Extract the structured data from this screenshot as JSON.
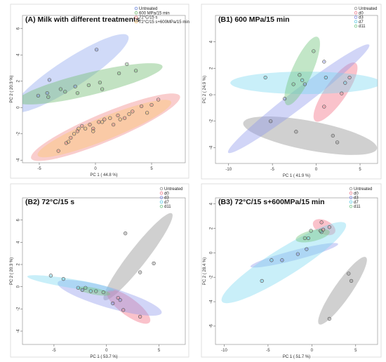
{
  "chart_data": [
    {
      "panel": "A",
      "type": "scatter",
      "title": "(A) Milk with different treatments",
      "xlabel": "PC 1 ( 44.8 %)",
      "ylabel": "PC 2 ( 20.3 %)",
      "xlim": [
        -6.5,
        8
      ],
      "ylim": [
        -4.2,
        7
      ],
      "xticks": [
        -5,
        0,
        5
      ],
      "yticks": [
        -4,
        -2,
        0,
        2,
        4,
        6
      ],
      "grid": false,
      "legend_position": "top-right",
      "series": [
        {
          "name": "Untreated",
          "color": "#7b93e0",
          "fill": "rgba(120,150,235,0.35)",
          "points": [
            [
              -5.1,
              0.9
            ],
            [
              -4.3,
              1.1
            ],
            [
              -4.1,
              2.1
            ],
            [
              -1.8,
              1.6
            ],
            [
              0.1,
              4.4
            ]
          ],
          "ellipse": {
            "cx": -2.2,
            "cy": 2.6,
            "rx": 6.3,
            "ry": 1.05,
            "angle": 36
          }
        },
        {
          "name": "600 MPa/15 min",
          "color": "#7fbf7f",
          "fill": "rgba(120,190,120,0.45)",
          "points": [
            [
              -4.2,
              0.8
            ],
            [
              -3.1,
              1.4
            ],
            [
              -2.7,
              1.2
            ],
            [
              -1.6,
              1.1
            ],
            [
              -0.6,
              1.7
            ],
            [
              0.4,
              1.9
            ],
            [
              0.6,
              1.4
            ],
            [
              2.1,
              2.6
            ],
            [
              2.8,
              3.3
            ],
            [
              3.6,
              2.8
            ]
          ],
          "ellipse": {
            "cx": -0.5,
            "cy": 1.8,
            "rx": 6.7,
            "ry": 0.85,
            "angle": 15
          }
        },
        {
          "name": "72°C/15 s",
          "color": "#e98a8a",
          "fill": "rgba(240,130,130,0.40)",
          "points": [
            [
              -3.3,
              -3.3
            ],
            [
              -2.6,
              -2.7
            ],
            [
              -2.2,
              -2.3
            ],
            [
              -1.6,
              -1.8
            ],
            [
              -1.2,
              -1.4
            ],
            [
              -0.5,
              -1.3
            ],
            [
              -0.2,
              -1.6
            ],
            [
              0.3,
              -1.1
            ],
            [
              0.8,
              -0.9
            ],
            [
              1.6,
              -1.3
            ],
            [
              2.0,
              -0.6
            ],
            [
              2.6,
              -0.8
            ],
            [
              3.3,
              -0.3
            ],
            [
              4.1,
              0.1
            ],
            [
              5.0,
              0.2
            ],
            [
              5.6,
              0.6
            ]
          ],
          "ellipse": {
            "cx": 0.9,
            "cy": -1.5,
            "rx": 7.3,
            "ry": 1.05,
            "angle": 25
          }
        },
        {
          "name": "72°C/15 s+600MPa/15 min",
          "color": "#f2c178",
          "fill": "rgba(250,200,120,0.45)",
          "points": [
            [
              -2.4,
              -2.6
            ],
            [
              -1.9,
              -2.0
            ],
            [
              -1.5,
              -1.6
            ],
            [
              -0.9,
              -1.6
            ],
            [
              -0.2,
              -1.8
            ],
            [
              0.6,
              -1.1
            ],
            [
              1.3,
              -0.8
            ],
            [
              2.2,
              -0.9
            ],
            [
              3.0,
              -0.5
            ],
            [
              4.6,
              -0.4
            ]
          ],
          "ellipse": {
            "cx": 0.8,
            "cy": -1.6,
            "rx": 6.5,
            "ry": 0.85,
            "angle": 24
          }
        }
      ]
    },
    {
      "panel": "B1",
      "type": "scatter",
      "title": "(B1) 600 MPa/15 min",
      "xlabel": "PC 1 ( 41.9 %)",
      "ylabel": "PC 2 ( 24.9 %)",
      "xlim": [
        -11.5,
        7
      ],
      "ylim": [
        -5.2,
        6
      ],
      "xticks": [
        -10,
        -5,
        0,
        5
      ],
      "yticks": [
        -4,
        -2,
        0,
        2,
        4
      ],
      "grid": false,
      "legend_position": "top-right",
      "series": [
        {
          "name": "Untreated",
          "color": "#9a9a9a",
          "fill": "rgba(150,150,150,0.45)",
          "points": [
            [
              -5.2,
              -2.0
            ],
            [
              -2.3,
              -2.8
            ],
            [
              1.9,
              -3.1
            ],
            [
              2.4,
              -3.6
            ]
          ],
          "ellipse": {
            "cx": -0.7,
            "cy": -3.1,
            "rx": 7.8,
            "ry": 1.1,
            "angle": -12
          }
        },
        {
          "name": "d0",
          "color": "#f08a9a",
          "fill": "rgba(245,120,140,0.45)",
          "points": [
            [
              0.9,
              -0.9
            ],
            [
              2.9,
              0.1
            ],
            [
              3.8,
              1.3
            ]
          ],
          "ellipse": {
            "cx": 2.2,
            "cy": 0.2,
            "rx": 4.3,
            "ry": 0.75,
            "angle": 58
          }
        },
        {
          "name": "d3",
          "color": "#8b95e6",
          "fill": "rgba(140,150,235,0.40)",
          "points": [
            [
              -3.6,
              -0.3
            ],
            [
              -1.3,
              0.8
            ],
            [
              0.9,
              2.5
            ]
          ],
          "ellipse": {
            "cx": -2.0,
            "cy": -0.3,
            "rx": 10.5,
            "ry": 0.65,
            "angle": 40
          }
        },
        {
          "name": "d7",
          "color": "#6fd0e8",
          "fill": "rgba(120,215,240,0.40)",
          "points": [
            [
              -5.8,
              1.3
            ],
            [
              -1.6,
              1.1
            ],
            [
              1.1,
              1.3
            ],
            [
              3.3,
              0.9
            ]
          ],
          "ellipse": {
            "cx": -1.2,
            "cy": 0.9,
            "rx": 8.6,
            "ry": 0.85,
            "angle": 0
          }
        },
        {
          "name": "d11",
          "color": "#7fc98f",
          "fill": "rgba(120,200,130,0.45)",
          "points": [
            [
              -2.6,
              0.8
            ],
            [
              -1.9,
              1.5
            ],
            [
              -0.3,
              3.3
            ]
          ],
          "ellipse": {
            "cx": -1.6,
            "cy": 1.8,
            "rx": 4.6,
            "ry": 0.7,
            "angle": 68
          }
        }
      ]
    },
    {
      "panel": "B2",
      "type": "scatter",
      "title": "(B2) 72°C/15 s",
      "xlabel": "PC 1 ( 53.7 %)",
      "ylabel": "PC 2 ( 20.3 %)",
      "xlim": [
        -8,
        7.5
      ],
      "ylim": [
        -5.2,
        8
      ],
      "xticks": [
        -5,
        0,
        5
      ],
      "yticks": [
        -4,
        -2,
        0,
        2,
        4,
        6
      ],
      "grid": false,
      "legend_position": "top-right",
      "series": [
        {
          "name": "Untreated",
          "color": "#9a9a9a",
          "fill": "rgba(150,150,150,0.45)",
          "points": [
            [
              1.8,
              4.8
            ],
            [
              3.2,
              1.3
            ],
            [
              4.5,
              2.1
            ]
          ],
          "ellipse": {
            "cx": 3.0,
            "cy": 2.7,
            "rx": 5.6,
            "ry": 0.75,
            "angle": 55
          }
        },
        {
          "name": "d0",
          "color": "#f08a9a",
          "fill": "rgba(245,120,140,0.45)",
          "points": [
            [
              1.1,
              -1.0
            ],
            [
              1.6,
              -2.1
            ],
            [
              3.2,
              -2.7
            ]
          ],
          "ellipse": {
            "cx": 2.1,
            "cy": -1.8,
            "rx": 2.6,
            "ry": 0.75,
            "angle": -40
          }
        },
        {
          "name": "d3",
          "color": "#8b95e6",
          "fill": "rgba(140,150,235,0.40)",
          "points": [
            [
              -2.3,
              -0.3
            ],
            [
              0.6,
              -1.5
            ],
            [
              1.3,
              -1.2
            ]
          ],
          "ellipse": {
            "cx": 0.3,
            "cy": -1.0,
            "rx": 5.2,
            "ry": 0.9,
            "angle": -18
          }
        },
        {
          "name": "d7",
          "color": "#6fd0e8",
          "fill": "rgba(120,215,240,0.40)",
          "points": [
            [
              -5.3,
              1.0
            ],
            [
              -4.1,
              0.7
            ],
            [
              -2.7,
              -0.1
            ],
            [
              -1.5,
              -0.4
            ]
          ],
          "ellipse": {
            "cx": -3.4,
            "cy": 0.3,
            "rx": 4.2,
            "ry": 0.4,
            "angle": -10
          }
        },
        {
          "name": "d11",
          "color": "#7fc98f",
          "fill": "rgba(120,200,130,0.45)",
          "points": [
            [
              -2.0,
              -0.1
            ],
            [
              -1.0,
              -0.4
            ],
            [
              -0.3,
              -0.5
            ]
          ],
          "ellipse": {
            "cx": -1.2,
            "cy": -0.4,
            "rx": 1.6,
            "ry": 0.3,
            "angle": -12
          }
        }
      ]
    },
    {
      "panel": "B3",
      "type": "scatter",
      "title": "(B3) 72°C/15 s+600MPa/15 min",
      "xlabel": "PC 1 ( 51.7 %)",
      "ylabel": "PC 2 ( 28.4 %)",
      "xlim": [
        -11,
        7.5
      ],
      "ylim": [
        -7.5,
        4.5
      ],
      "xticks": [
        -10,
        -5,
        0,
        5
      ],
      "yticks": [
        -6,
        -4,
        -2,
        0,
        2,
        4
      ],
      "grid": false,
      "legend_position": "top-right",
      "series": [
        {
          "name": "Untreated",
          "color": "#9a9a9a",
          "fill": "rgba(150,150,150,0.45)",
          "points": [
            [
              2.0,
              -5.4
            ],
            [
              4.2,
              -1.7
            ],
            [
              4.5,
              -2.3
            ]
          ],
          "ellipse": {
            "cx": 3.5,
            "cy": -3.1,
            "rx": 5.0,
            "ry": 0.65,
            "angle": 58
          }
        },
        {
          "name": "d0",
          "color": "#f08a9a",
          "fill": "rgba(245,120,140,0.45)",
          "points": [
            [
              1.1,
              2.5
            ],
            [
              1.3,
              1.9
            ],
            [
              2.0,
              2.1
            ]
          ],
          "ellipse": {
            "cx": 1.4,
            "cy": 2.1,
            "rx": 1.4,
            "ry": 0.55,
            "angle": -30
          }
        },
        {
          "name": "d3",
          "color": "#8b95e6",
          "fill": "rgba(140,150,235,0.40)",
          "points": [
            [
              -3.4,
              -0.6
            ],
            [
              -1.6,
              -0.1
            ],
            [
              -0.6,
              0.3
            ]
          ],
          "ellipse": {
            "cx": -2.0,
            "cy": -0.2,
            "rx": 5.2,
            "ry": 0.4,
            "angle": 16
          }
        },
        {
          "name": "d7",
          "color": "#6fd0e8",
          "fill": "rgba(120,215,240,0.40)",
          "points": [
            [
              -5.7,
              -2.3
            ],
            [
              -4.6,
              -0.6
            ],
            [
              -0.4,
              1.2
            ],
            [
              1.1,
              1.7
            ]
          ],
          "ellipse": {
            "cx": -3.2,
            "cy": -0.8,
            "rx": 8.6,
            "ry": 1.1,
            "angle": 35
          }
        },
        {
          "name": "d11",
          "color": "#7fc98f",
          "fill": "rgba(120,200,130,0.45)",
          "points": [
            [
              -0.8,
              1.2
            ],
            [
              -0.1,
              1.8
            ],
            [
              1.0,
              1.8
            ]
          ],
          "ellipse": {
            "cx": 0.1,
            "cy": 1.4,
            "rx": 2.0,
            "ry": 0.45,
            "angle": 15
          }
        }
      ]
    }
  ]
}
